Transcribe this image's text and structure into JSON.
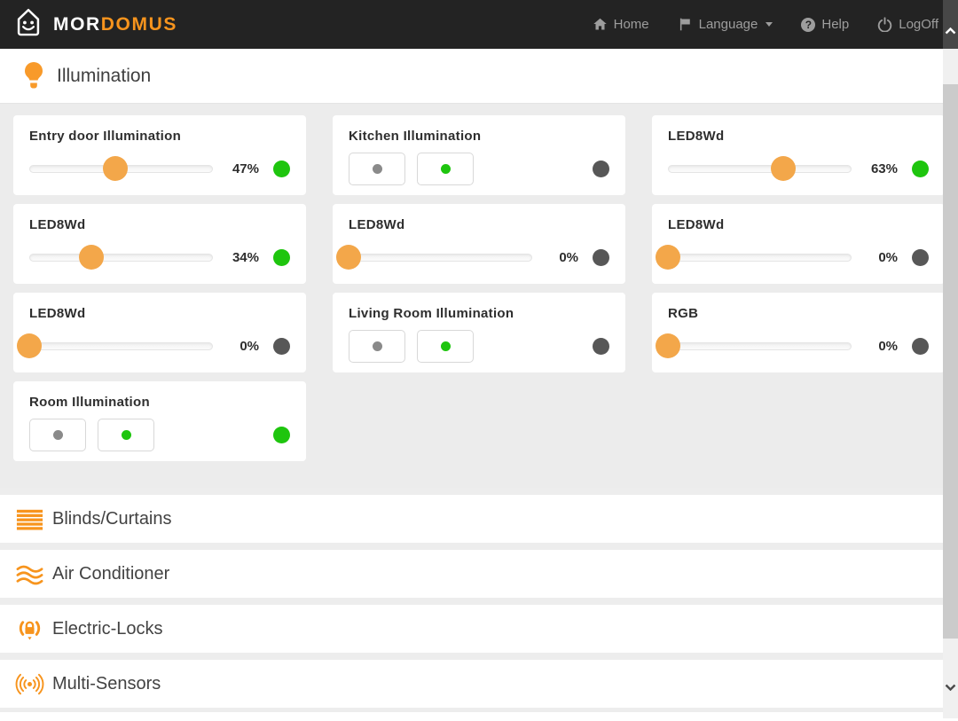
{
  "navbar": {
    "brand": {
      "text_primary": "MOR",
      "text_secondary": "DOMUS"
    },
    "items": [
      {
        "label": "Home",
        "icon": "home-icon"
      },
      {
        "label": "Language",
        "icon": "flag-icon",
        "has_caret": true
      },
      {
        "label": "Help",
        "icon": "question-circle-icon"
      },
      {
        "label": "LogOff",
        "icon": "power-icon"
      }
    ]
  },
  "sections": [
    {
      "title": "Illumination",
      "icon": "lightbulb-icon",
      "expanded": true
    },
    {
      "title": "Blinds/Curtains",
      "icon": "blinds-icon",
      "expanded": false
    },
    {
      "title": "Air Conditioner",
      "icon": "air-waves-icon",
      "expanded": false
    },
    {
      "title": "Electric-Locks",
      "icon": "lock-signal-icon",
      "expanded": false
    },
    {
      "title": "Multi-Sensors",
      "icon": "sensor-signal-icon",
      "expanded": false
    }
  ],
  "illumination": {
    "cards": [
      {
        "name": "Entry door Illumination",
        "type": "slider",
        "percent": 47,
        "value": "47%",
        "status": "on"
      },
      {
        "name": "Kitchen Illumination",
        "type": "buttons",
        "buttons": [
          {
            "dot": "gray"
          },
          {
            "dot": "green"
          }
        ],
        "status": "off"
      },
      {
        "name": "LED8Wd",
        "type": "slider",
        "percent": 63,
        "value": "63%",
        "status": "on"
      },
      {
        "name": "LED8Wd",
        "type": "slider",
        "percent": 34,
        "value": "34%",
        "status": "on"
      },
      {
        "name": "LED8Wd",
        "type": "slider",
        "percent": 0,
        "value": "0%",
        "status": "off"
      },
      {
        "name": "LED8Wd",
        "type": "slider",
        "percent": 0,
        "value": "0%",
        "status": "off"
      },
      {
        "name": "LED8Wd",
        "type": "slider",
        "percent": 0,
        "value": "0%",
        "status": "off"
      },
      {
        "name": "Living Room Illumination",
        "type": "buttons",
        "buttons": [
          {
            "dot": "gray"
          },
          {
            "dot": "green"
          }
        ],
        "status": "off"
      },
      {
        "name": "RGB",
        "type": "slider",
        "percent": 0,
        "value": "0%",
        "status": "off"
      },
      {
        "name": "Room Illumination",
        "type": "buttons",
        "buttons": [
          {
            "dot": "gray"
          },
          {
            "dot": "green"
          }
        ],
        "status": "on"
      }
    ]
  },
  "colors": {
    "accent_orange": "#f7941d",
    "slider_handle_orange": "#f3a74a",
    "status_on_green": "#1ec50e",
    "status_off_gray": "#575757",
    "navbar_bg": "#232323"
  }
}
